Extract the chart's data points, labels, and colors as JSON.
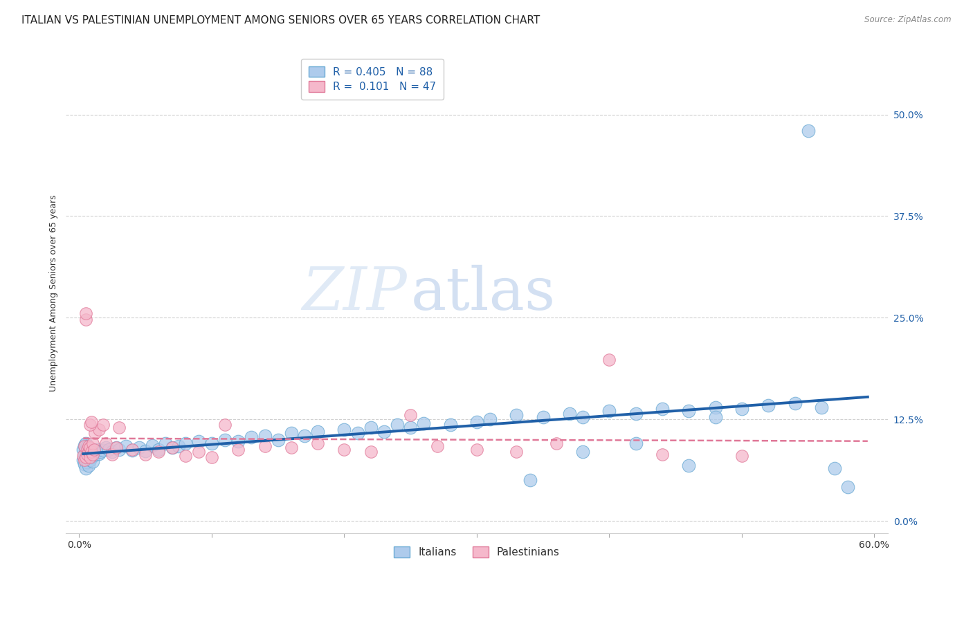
{
  "title": "ITALIAN VS PALESTINIAN UNEMPLOYMENT AMONG SENIORS OVER 65 YEARS CORRELATION CHART",
  "source": "Source: ZipAtlas.com",
  "ylabel": "Unemployment Among Seniors over 65 years",
  "xlim": [
    0.0,
    0.6
  ],
  "ylim": [
    0.0,
    0.55
  ],
  "yticks": [
    0.0,
    0.125,
    0.25,
    0.375,
    0.5
  ],
  "ytick_labels": [
    "0.0%",
    "12.5%",
    "25.0%",
    "37.5%",
    "50.0%"
  ],
  "xticks": [
    0.0,
    0.1,
    0.2,
    0.3,
    0.4,
    0.5,
    0.6
  ],
  "xtick_labels": [
    "0.0%",
    "",
    "",
    "",
    "",
    "",
    "60.0%"
  ],
  "italian_color": "#aecbec",
  "italian_edge_color": "#6aaad4",
  "palestinian_color": "#f5b8cb",
  "palestinian_edge_color": "#e07898",
  "trend_italian_color": "#2060a8",
  "trend_palestinian_color": "#e07898",
  "R_italian": 0.405,
  "N_italian": 88,
  "R_palestinian": 0.101,
  "N_palestinian": 47,
  "legend_label_italian": "Italians",
  "legend_label_palestinian": "Palestinians",
  "watermark_zip": "ZIP",
  "watermark_atlas": "atlas",
  "background_color": "#ffffff",
  "grid_color": "#cccccc",
  "title_fontsize": 11,
  "axis_label_fontsize": 9,
  "tick_fontsize": 10,
  "ytick_color": "#2060a8",
  "italian_x": [
    0.003,
    0.003,
    0.004,
    0.004,
    0.004,
    0.005,
    0.005,
    0.005,
    0.005,
    0.005,
    0.006,
    0.006,
    0.006,
    0.006,
    0.007,
    0.007,
    0.007,
    0.008,
    0.008,
    0.008,
    0.009,
    0.009,
    0.01,
    0.01,
    0.01,
    0.011,
    0.012,
    0.013,
    0.014,
    0.015,
    0.016,
    0.018,
    0.02,
    0.022,
    0.025,
    0.028,
    0.03,
    0.035,
    0.04,
    0.045,
    0.05,
    0.055,
    0.06,
    0.065,
    0.07,
    0.075,
    0.08,
    0.09,
    0.1,
    0.11,
    0.12,
    0.13,
    0.14,
    0.15,
    0.16,
    0.17,
    0.18,
    0.2,
    0.21,
    0.22,
    0.23,
    0.24,
    0.25,
    0.26,
    0.28,
    0.3,
    0.31,
    0.33,
    0.35,
    0.37,
    0.38,
    0.4,
    0.42,
    0.44,
    0.46,
    0.48,
    0.5,
    0.52,
    0.54,
    0.56,
    0.55,
    0.57,
    0.58,
    0.46,
    0.34,
    0.38,
    0.42,
    0.48
  ],
  "italian_y": [
    0.075,
    0.088,
    0.07,
    0.082,
    0.093,
    0.065,
    0.08,
    0.088,
    0.076,
    0.095,
    0.072,
    0.085,
    0.078,
    0.092,
    0.068,
    0.082,
    0.09,
    0.075,
    0.087,
    0.08,
    0.083,
    0.078,
    0.08,
    0.088,
    0.073,
    0.085,
    0.082,
    0.086,
    0.088,
    0.083,
    0.085,
    0.087,
    0.09,
    0.088,
    0.085,
    0.09,
    0.088,
    0.092,
    0.087,
    0.09,
    0.086,
    0.093,
    0.088,
    0.095,
    0.09,
    0.092,
    0.095,
    0.098,
    0.095,
    0.1,
    0.098,
    0.103,
    0.105,
    0.1,
    0.108,
    0.105,
    0.11,
    0.112,
    0.108,
    0.115,
    0.11,
    0.118,
    0.115,
    0.12,
    0.118,
    0.122,
    0.125,
    0.13,
    0.128,
    0.132,
    0.128,
    0.135,
    0.132,
    0.138,
    0.135,
    0.14,
    0.138,
    0.142,
    0.145,
    0.14,
    0.48,
    0.065,
    0.042,
    0.068,
    0.05,
    0.085,
    0.095,
    0.128
  ],
  "palestinian_x": [
    0.003,
    0.004,
    0.004,
    0.005,
    0.005,
    0.005,
    0.006,
    0.006,
    0.007,
    0.007,
    0.008,
    0.008,
    0.009,
    0.01,
    0.01,
    0.011,
    0.012,
    0.015,
    0.018,
    0.02,
    0.025,
    0.028,
    0.03,
    0.04,
    0.05,
    0.06,
    0.07,
    0.08,
    0.09,
    0.1,
    0.11,
    0.12,
    0.14,
    0.16,
    0.18,
    0.2,
    0.22,
    0.25,
    0.27,
    0.3,
    0.33,
    0.36,
    0.4,
    0.44,
    0.5,
    0.008,
    0.009
  ],
  "palestinian_y": [
    0.08,
    0.075,
    0.092,
    0.248,
    0.255,
    0.078,
    0.088,
    0.082,
    0.085,
    0.092,
    0.078,
    0.09,
    0.085,
    0.082,
    0.095,
    0.088,
    0.108,
    0.112,
    0.118,
    0.095,
    0.082,
    0.09,
    0.115,
    0.088,
    0.082,
    0.085,
    0.09,
    0.08,
    0.085,
    0.078,
    0.118,
    0.088,
    0.092,
    0.09,
    0.095,
    0.088,
    0.085,
    0.13,
    0.092,
    0.088,
    0.085,
    0.095,
    0.198,
    0.082,
    0.08,
    0.118,
    0.122
  ]
}
